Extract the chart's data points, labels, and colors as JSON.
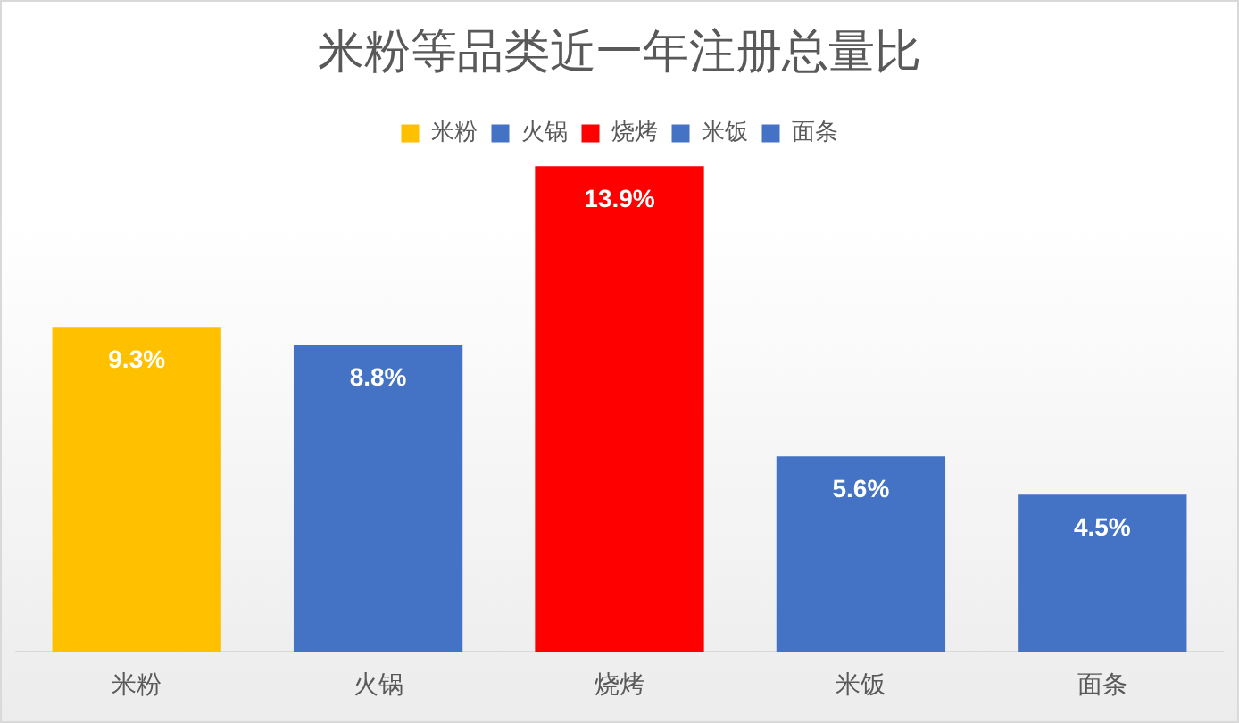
{
  "chart_data": {
    "type": "bar",
    "title": "米粉等品类近一年注册总量比",
    "categories": [
      "米粉",
      "火锅",
      "烧烤",
      "米饭",
      "面条"
    ],
    "series": [
      {
        "name": "米粉",
        "color": "#ffc000",
        "values": [
          9.3,
          null,
          null,
          null,
          null
        ],
        "value_labels": [
          "9.3%",
          null,
          null,
          null,
          null
        ]
      },
      {
        "name": "火锅",
        "color": "#4472c4",
        "values": [
          null,
          8.8,
          null,
          null,
          null
        ],
        "value_labels": [
          null,
          "8.8%",
          null,
          null,
          null
        ]
      },
      {
        "name": "烧烤",
        "color": "#ff0000",
        "values": [
          null,
          null,
          13.9,
          null,
          null
        ],
        "value_labels": [
          null,
          null,
          "13.9%",
          null,
          null
        ]
      },
      {
        "name": "米饭",
        "color": "#4472c4",
        "values": [
          null,
          null,
          null,
          5.6,
          null
        ],
        "value_labels": [
          null,
          null,
          null,
          "5.6%",
          null
        ]
      },
      {
        "name": "面条",
        "color": "#4472c4",
        "values": [
          null,
          null,
          null,
          null,
          4.5
        ],
        "value_labels": [
          null,
          null,
          null,
          null,
          "4.5%"
        ]
      }
    ],
    "legend": "top"
  }
}
